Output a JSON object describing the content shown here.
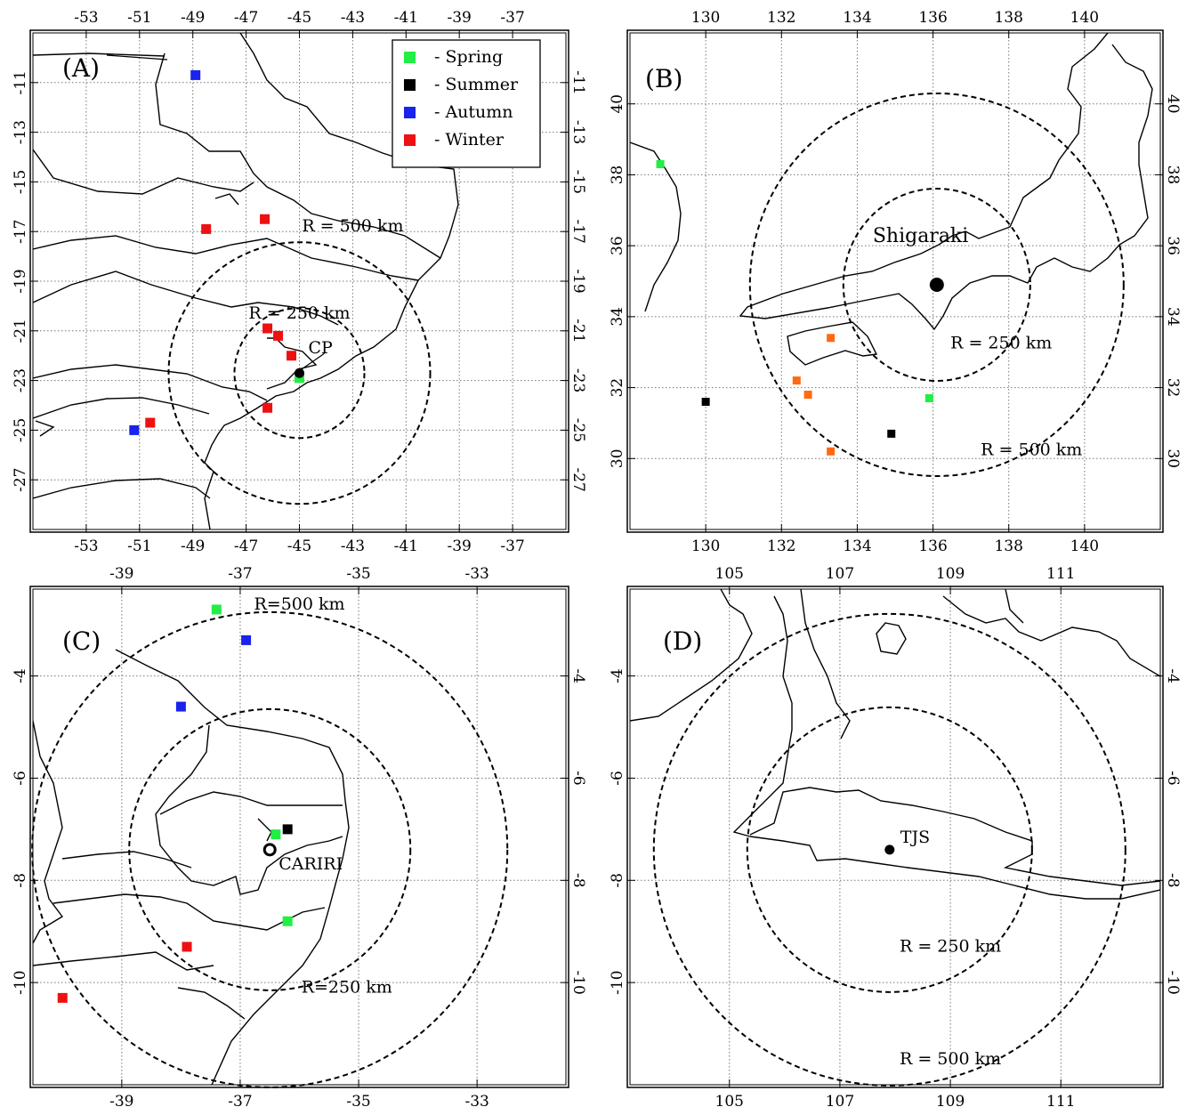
{
  "panels": [
    {
      "id": "A",
      "label": "(A)",
      "lon_range": [
        -55,
        -35
      ],
      "lat_range": [
        -29,
        -9
      ],
      "lon_ticks": [
        "-53",
        "-51",
        "-49",
        "-47",
        "-45",
        "-43",
        "-41",
        "-39",
        "-37"
      ],
      "lat_ticks": [
        "-11",
        "-13",
        "-15",
        "-17",
        "-19",
        "-21",
        "-23",
        "-25",
        "-27"
      ],
      "station": {
        "name": "CP",
        "lon": -45.0,
        "lat": -22.7,
        "marker": "filled"
      },
      "rings": [
        {
          "label": "R = 500 km",
          "lon": -43.0,
          "lat": -17.0
        },
        {
          "label": "R = 250 km",
          "lon": -45.0,
          "lat": -20.5
        }
      ],
      "legend": [
        {
          "label": "- Spring",
          "color": "#22ee44"
        },
        {
          "label": "- Summer",
          "color": "#000000"
        },
        {
          "label": "- Autumn",
          "color": "#1a22ee"
        },
        {
          "label": "- Winter",
          "color": "#ee1111"
        }
      ],
      "points": [
        {
          "lon": -48.9,
          "lat": -10.7,
          "color": "#1a22ee"
        },
        {
          "lon": -48.5,
          "lat": -16.9,
          "color": "#ee1111"
        },
        {
          "lon": -46.3,
          "lat": -16.5,
          "color": "#ee1111"
        },
        {
          "lon": -46.2,
          "lat": -20.9,
          "color": "#ee1111"
        },
        {
          "lon": -45.8,
          "lat": -21.2,
          "color": "#ee1111"
        },
        {
          "lon": -45.3,
          "lat": -22.0,
          "color": "#ee1111"
        },
        {
          "lon": -46.2,
          "lat": -24.1,
          "color": "#ee1111"
        },
        {
          "lon": -45.0,
          "lat": -22.9,
          "color": "#22ee44"
        },
        {
          "lon": -51.2,
          "lat": -25.0,
          "color": "#1a22ee"
        },
        {
          "lon": -50.6,
          "lat": -24.7,
          "color": "#ee1111"
        }
      ]
    },
    {
      "id": "B",
      "label": "(B)",
      "lon_range": [
        128,
        142
      ],
      "lat_range": [
        28,
        42
      ],
      "lon_ticks": [
        "130",
        "132",
        "134",
        "136",
        "138",
        "140"
      ],
      "lat_ticks": [
        "40",
        "38",
        "36",
        "34",
        "32",
        "30"
      ],
      "station": {
        "name": "Shigaraki",
        "lon": 136.1,
        "lat": 34.9,
        "marker": "filled-large"
      },
      "rings": [
        {
          "label": "R = 250 km",
          "lon": 137.8,
          "lat": 33.1
        },
        {
          "label": "R = 500 km",
          "lon": 138.6,
          "lat": 30.1
        }
      ],
      "legend": [],
      "points": [
        {
          "lon": 128.8,
          "lat": 38.3,
          "color": "#22ee44"
        },
        {
          "lon": 130.0,
          "lat": 31.6,
          "color": "#000000"
        },
        {
          "lon": 133.3,
          "lat": 33.4,
          "color": "#ff6a13"
        },
        {
          "lon": 132.4,
          "lat": 32.2,
          "color": "#ff6a13"
        },
        {
          "lon": 132.7,
          "lat": 31.8,
          "color": "#ff6a13"
        },
        {
          "lon": 133.3,
          "lat": 30.2,
          "color": "#ff6a13"
        },
        {
          "lon": 135.9,
          "lat": 31.7,
          "color": "#22ee44"
        },
        {
          "lon": 134.9,
          "lat": 30.7,
          "color": "#000000"
        }
      ]
    },
    {
      "id": "C",
      "label": "(C)",
      "lon_range": [
        -40.5,
        -31.5
      ],
      "lat_range": [
        -12,
        -2.3
      ],
      "lon_ticks": [
        "-39",
        "-37",
        "-35",
        "-33"
      ],
      "lat_ticks": [
        "-4",
        "-6",
        "-8",
        "-10"
      ],
      "station": {
        "name": "CARIRI",
        "lon": -36.5,
        "lat": -7.4,
        "marker": "ring"
      },
      "rings": [
        {
          "label": "R=500 km",
          "lon": -36.0,
          "lat": -2.7
        },
        {
          "label": "R=250 km",
          "lon": -35.2,
          "lat": -10.2
        }
      ],
      "legend": [],
      "points": [
        {
          "lon": -37.4,
          "lat": -2.7,
          "color": "#22ee44"
        },
        {
          "lon": -36.9,
          "lat": -3.3,
          "color": "#1a22ee"
        },
        {
          "lon": -38.0,
          "lat": -4.6,
          "color": "#1a22ee"
        },
        {
          "lon": -36.4,
          "lat": -7.1,
          "color": "#22ee44"
        },
        {
          "lon": -36.2,
          "lat": -7.0,
          "color": "#000000"
        },
        {
          "lon": -36.2,
          "lat": -8.8,
          "color": "#22ee44"
        },
        {
          "lon": -37.9,
          "lat": -9.3,
          "color": "#ee1111"
        },
        {
          "lon": -40.0,
          "lat": -10.3,
          "color": "#ee1111"
        }
      ]
    },
    {
      "id": "D",
      "label": "(D)",
      "lon_range": [
        103.2,
        112.8
      ],
      "lat_range": [
        -12,
        -2.3
      ],
      "lon_ticks": [
        "105",
        "107",
        "109",
        "111"
      ],
      "lat_ticks": [
        "-4",
        "-6",
        "-8",
        "-10"
      ],
      "station": {
        "name": "TJS",
        "lon": 107.9,
        "lat": -7.4,
        "marker": "filled"
      },
      "rings": [
        {
          "label": "R = 250 km",
          "lon": 109.0,
          "lat": -9.4
        },
        {
          "label": "R = 500 km",
          "lon": 109.0,
          "lat": -11.6
        }
      ],
      "legend": [],
      "points": []
    }
  ]
}
